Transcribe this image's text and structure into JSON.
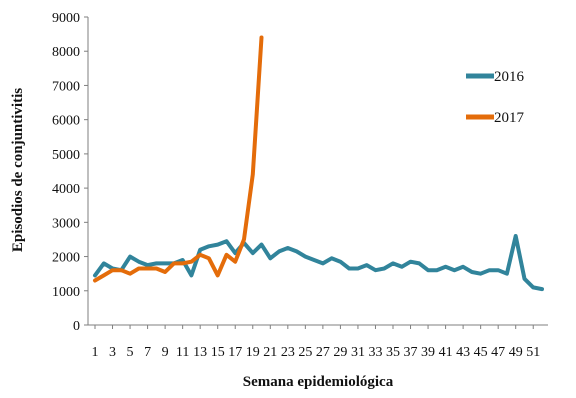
{
  "chart_data": {
    "type": "line",
    "title": "",
    "xlabel": "Semana epidemiológica",
    "ylabel": "Episodios de conjuntivitis",
    "ylim": [
      0,
      9000
    ],
    "yticks": [
      0,
      1000,
      2000,
      3000,
      4000,
      5000,
      6000,
      7000,
      8000,
      9000
    ],
    "xlim": [
      1,
      52
    ],
    "xticks": [
      1,
      3,
      5,
      7,
      9,
      11,
      13,
      15,
      17,
      19,
      21,
      23,
      25,
      27,
      29,
      31,
      33,
      35,
      37,
      39,
      41,
      43,
      45,
      47,
      49,
      51
    ],
    "grid": false,
    "legend_position": "right",
    "series": [
      {
        "name": "2016",
        "color": "#31849B",
        "x": [
          1,
          2,
          3,
          4,
          5,
          6,
          7,
          8,
          9,
          10,
          11,
          12,
          13,
          14,
          15,
          16,
          17,
          18,
          19,
          20,
          21,
          22,
          23,
          24,
          25,
          26,
          27,
          28,
          29,
          30,
          31,
          32,
          33,
          34,
          35,
          36,
          37,
          38,
          39,
          40,
          41,
          42,
          43,
          44,
          45,
          46,
          47,
          48,
          49,
          50,
          51,
          52
        ],
        "values": [
          1450,
          1800,
          1650,
          1600,
          2000,
          1850,
          1750,
          1800,
          1800,
          1800,
          1900,
          1450,
          2200,
          2300,
          2350,
          2450,
          2100,
          2400,
          2100,
          2350,
          1950,
          2150,
          2250,
          2150,
          2000,
          1900,
          1800,
          1950,
          1850,
          1650,
          1650,
          1750,
          1600,
          1650,
          1800,
          1700,
          1850,
          1800,
          1600,
          1600,
          1700,
          1600,
          1700,
          1550,
          1500,
          1600,
          1600,
          1500,
          2600,
          1350,
          1100,
          1050
        ]
      },
      {
        "name": "2017",
        "color": "#E46C0A",
        "x": [
          1,
          2,
          3,
          4,
          5,
          6,
          7,
          8,
          9,
          10,
          11,
          12,
          13,
          14,
          15,
          16,
          17,
          18,
          19,
          20
        ],
        "values": [
          1300,
          1450,
          1600,
          1600,
          1500,
          1650,
          1650,
          1650,
          1550,
          1800,
          1800,
          1850,
          2050,
          1950,
          1450,
          2050,
          1850,
          2500,
          4400,
          8400
        ]
      }
    ]
  }
}
